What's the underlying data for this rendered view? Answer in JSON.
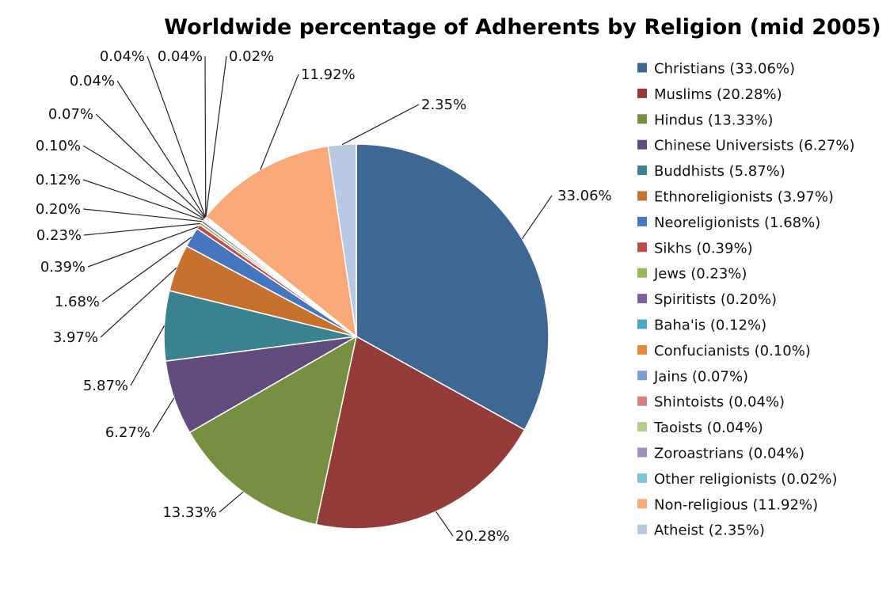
{
  "chart_data": {
    "type": "pie",
    "title": "Worldwide percentage of Adherents by Religion (mid 2005)",
    "legend_position": "right",
    "slices": [
      {
        "name": "Christians",
        "value": 33.06,
        "label": "33.06%",
        "legend": "Christians (33.06%)",
        "color": "#3E6793"
      },
      {
        "name": "Muslims",
        "value": 20.28,
        "label": "20.28%",
        "legend": "Muslims (20.28%)",
        "color": "#943C3A"
      },
      {
        "name": "Hindus",
        "value": 13.33,
        "label": "13.33%",
        "legend": "Hindus (13.33%)",
        "color": "#778F41"
      },
      {
        "name": "Chinese Universists",
        "value": 6.27,
        "label": "6.27%",
        "legend": "Chinese Universists (6.27%)",
        "color": "#614C7D"
      },
      {
        "name": "Buddhists",
        "value": 5.87,
        "label": "5.87%",
        "legend": "Buddhists (5.87%)",
        "color": "#3A8290"
      },
      {
        "name": "Ethnoreligionists",
        "value": 3.97,
        "label": "3.97%",
        "legend": "Ethnoreligionists (3.97%)",
        "color": "#C6722E"
      },
      {
        "name": "Neoreligionists",
        "value": 1.68,
        "label": "1.68%",
        "legend": "Neoreligionists (1.68%)",
        "color": "#4677BE"
      },
      {
        "name": "Sikhs",
        "value": 0.39,
        "label": "0.39%",
        "legend": "Sikhs (0.39%)",
        "color": "#BF4B48"
      },
      {
        "name": "Jews",
        "value": 0.23,
        "label": "0.23%",
        "legend": "Jews (0.23%)",
        "color": "#98B954"
      },
      {
        "name": "Spiritists",
        "value": 0.2,
        "label": "0.20%",
        "legend": "Spiritists (0.20%)",
        "color": "#7E5F9E"
      },
      {
        "name": "Baha'is",
        "value": 0.12,
        "label": "0.12%",
        "legend": "Baha'is (0.12%)",
        "color": "#46AAC4"
      },
      {
        "name": "Confucianists",
        "value": 0.1,
        "label": "0.10%",
        "legend": "Confucianists (0.10%)",
        "color": "#E28B3C"
      },
      {
        "name": "Jains",
        "value": 0.07,
        "label": "0.07%",
        "legend": "Jains (0.07%)",
        "color": "#7F9ED0"
      },
      {
        "name": "Shintoists",
        "value": 0.04,
        "label": "0.04%",
        "legend": "Shintoists (0.04%)",
        "color": "#D38280"
      },
      {
        "name": "Taoists",
        "value": 0.04,
        "label": "0.04%",
        "legend": "Taoists (0.04%)",
        "color": "#B4CD89"
      },
      {
        "name": "Zoroastrians",
        "value": 0.04,
        "label": "0.04%",
        "legend": "Zoroastrians (0.04%)",
        "color": "#A08EBB"
      },
      {
        "name": "Other religionists",
        "value": 0.02,
        "label": "0.02%",
        "legend": "Other religionists (0.02%)",
        "color": "#7FC3D4"
      },
      {
        "name": "Non-religious",
        "value": 11.92,
        "label": "11.92%",
        "legend": "Non-religious (11.92%)",
        "color": "#F8A977"
      },
      {
        "name": "Atheist",
        "value": 2.35,
        "label": "2.35%",
        "legend": "Atheist (2.35%)",
        "color": "#B9C8E3"
      }
    ]
  }
}
